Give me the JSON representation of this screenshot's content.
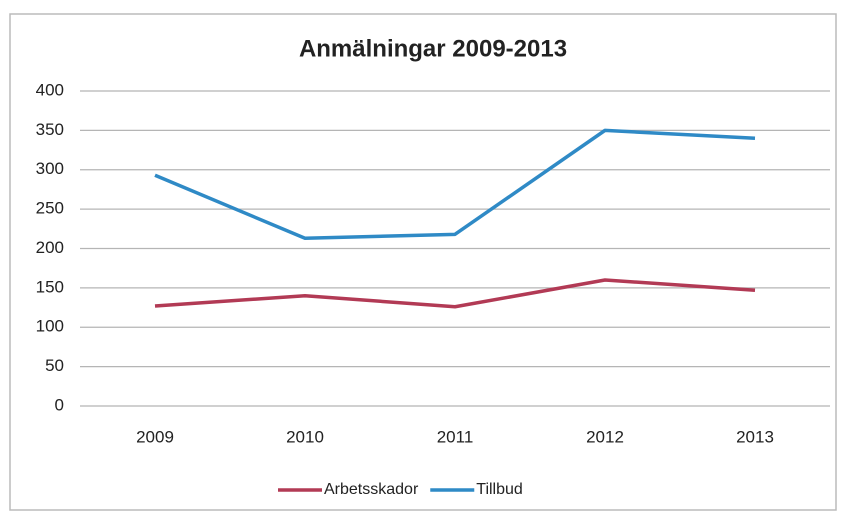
{
  "chart_data": {
    "type": "line",
    "title": "Anmälningar 2009-2013",
    "categories": [
      "2009",
      "2010",
      "2011",
      "2012",
      "2013"
    ],
    "series": [
      {
        "name": "Arbetsskador",
        "color": "#b23a55",
        "values": [
          127,
          140,
          126,
          160,
          147
        ]
      },
      {
        "name": "Tillbud",
        "color": "#2f8ac6",
        "values": [
          293,
          213,
          218,
          350,
          340
        ]
      }
    ],
    "ylim": [
      0,
      400
    ],
    "yticks": [
      0,
      50,
      100,
      150,
      200,
      250,
      300,
      350,
      400
    ],
    "grid": true,
    "legend": "bottom"
  }
}
